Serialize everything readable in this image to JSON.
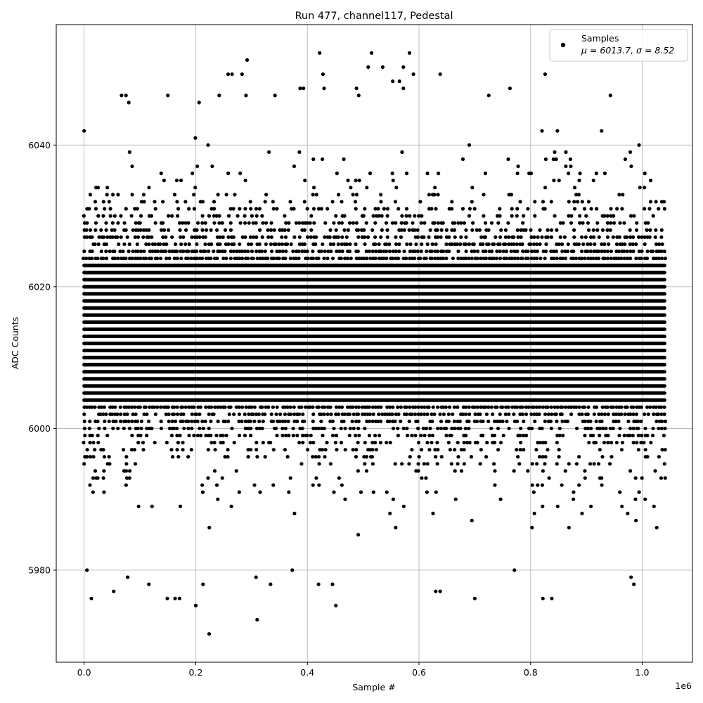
{
  "chart_data": {
    "type": "scatter",
    "title": "Run 477, channel117, Pedestal",
    "xlabel": "Sample #",
    "ylabel": "ADC Counts",
    "x_offset_label": "1e6",
    "xlim": [
      -0.05,
      1.09
    ],
    "ylim": [
      5967,
      6057
    ],
    "x_ticks": [
      0.0,
      0.2,
      0.4,
      0.6,
      0.8,
      1.0
    ],
    "x_tick_labels": [
      "0.0",
      "0.2",
      "0.4",
      "0.6",
      "0.8",
      "1.0"
    ],
    "y_ticks": [
      5980,
      6000,
      6020,
      6040
    ],
    "y_tick_labels": [
      "5980",
      "6000",
      "6020",
      "6040"
    ],
    "grid": true,
    "legend_position": "top-right",
    "marker_color": "#000000",
    "series": [
      {
        "name": "Samples",
        "label": "Samples",
        "stats_text": "μ = 6013.7, σ = 8.52",
        "mean": 6013.7,
        "sigma": 8.52,
        "x_range": [
          0.0,
          1.04
        ],
        "dense_band": [
          5985,
          6042
        ],
        "outliers": [
          {
            "x": 0.0,
            "y": 6042
          },
          {
            "x": 0.005,
            "y": 5980
          },
          {
            "x": 0.013,
            "y": 5976
          },
          {
            "x": 0.053,
            "y": 5977
          },
          {
            "x": 0.067,
            "y": 6047
          },
          {
            "x": 0.075,
            "y": 6047
          },
          {
            "x": 0.08,
            "y": 6046
          },
          {
            "x": 0.078,
            "y": 5979
          },
          {
            "x": 0.116,
            "y": 5978
          },
          {
            "x": 0.149,
            "y": 5976
          },
          {
            "x": 0.15,
            "y": 6047
          },
          {
            "x": 0.163,
            "y": 5976
          },
          {
            "x": 0.171,
            "y": 5976
          },
          {
            "x": 0.2,
            "y": 5975
          },
          {
            "x": 0.206,
            "y": 6046
          },
          {
            "x": 0.213,
            "y": 5978
          },
          {
            "x": 0.224,
            "y": 5971
          },
          {
            "x": 0.242,
            "y": 6047
          },
          {
            "x": 0.258,
            "y": 6050
          },
          {
            "x": 0.265,
            "y": 6050
          },
          {
            "x": 0.283,
            "y": 6050
          },
          {
            "x": 0.292,
            "y": 6052
          },
          {
            "x": 0.29,
            "y": 6047
          },
          {
            "x": 0.31,
            "y": 5973
          },
          {
            "x": 0.308,
            "y": 5979
          },
          {
            "x": 0.334,
            "y": 5978
          },
          {
            "x": 0.342,
            "y": 6047
          },
          {
            "x": 0.373,
            "y": 5980
          },
          {
            "x": 0.387,
            "y": 6048
          },
          {
            "x": 0.393,
            "y": 6048
          },
          {
            "x": 0.42,
            "y": 5978
          },
          {
            "x": 0.422,
            "y": 6053
          },
          {
            "x": 0.428,
            "y": 6050
          },
          {
            "x": 0.43,
            "y": 6048
          },
          {
            "x": 0.445,
            "y": 5978
          },
          {
            "x": 0.451,
            "y": 5975
          },
          {
            "x": 0.488,
            "y": 6048
          },
          {
            "x": 0.492,
            "y": 6047
          },
          {
            "x": 0.509,
            "y": 6051
          },
          {
            "x": 0.515,
            "y": 6053
          },
          {
            "x": 0.535,
            "y": 6051
          },
          {
            "x": 0.553,
            "y": 6049
          },
          {
            "x": 0.565,
            "y": 6049
          },
          {
            "x": 0.572,
            "y": 6051
          },
          {
            "x": 0.572,
            "y": 6048
          },
          {
            "x": 0.583,
            "y": 6053
          },
          {
            "x": 0.59,
            "y": 6050
          },
          {
            "x": 0.63,
            "y": 5977
          },
          {
            "x": 0.638,
            "y": 5977
          },
          {
            "x": 0.638,
            "y": 6050
          },
          {
            "x": 0.7,
            "y": 5976
          },
          {
            "x": 0.725,
            "y": 6047
          },
          {
            "x": 0.763,
            "y": 6048
          },
          {
            "x": 0.771,
            "y": 5980
          },
          {
            "x": 0.822,
            "y": 5976
          },
          {
            "x": 0.826,
            "y": 6050
          },
          {
            "x": 0.838,
            "y": 5976
          },
          {
            "x": 0.943,
            "y": 6047
          },
          {
            "x": 0.98,
            "y": 5979
          },
          {
            "x": 0.985,
            "y": 5978
          }
        ]
      }
    ]
  }
}
